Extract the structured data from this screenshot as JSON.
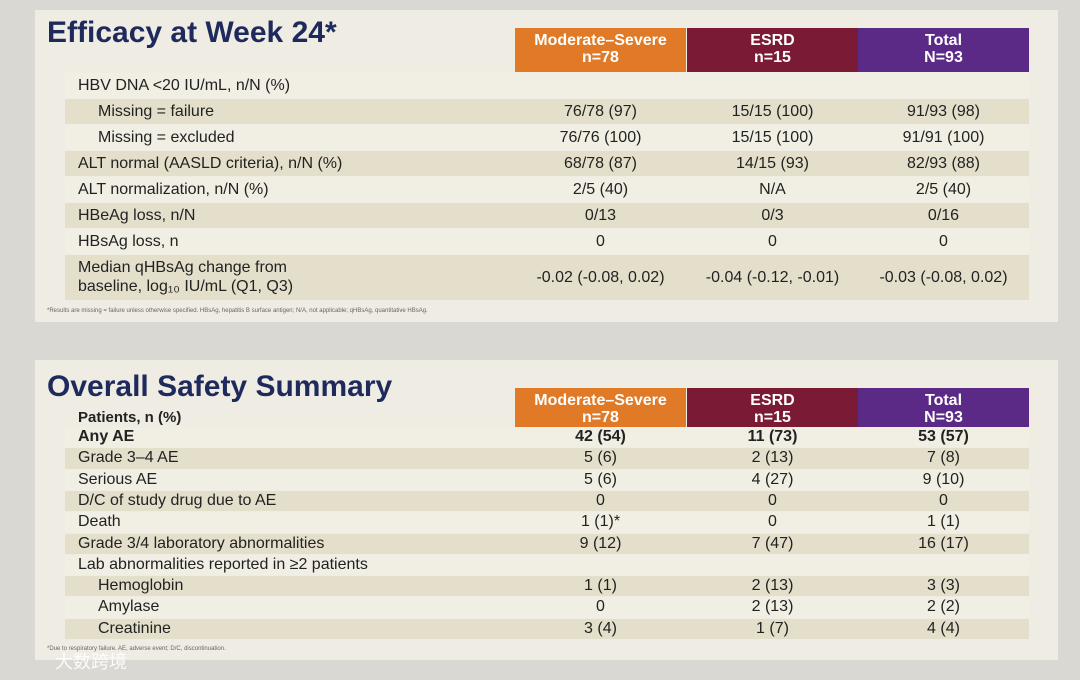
{
  "efficacy": {
    "title": "Efficacy at Week 24*",
    "columns": [
      {
        "name": "Moderate–Severe",
        "n": "n=78"
      },
      {
        "name": "ESRD",
        "n": "n=15"
      },
      {
        "name": "Total",
        "n": "N=93"
      }
    ],
    "rows": [
      {
        "label": "HBV DNA <20 IU/mL, n/N (%)",
        "rows": [
          {
            "label": "Missing = failure",
            "values": [
              "76/78 (97)",
              "15/15 (100)",
              "91/93 (98)"
            ]
          },
          {
            "label": "Missing = excluded",
            "values": [
              "76/76 (100)",
              "15/15 (100)",
              "91/91 (100)"
            ]
          }
        ]
      },
      {
        "label": "ALT normal (AASLD criteria), n/N (%)",
        "values": [
          "68/78 (87)",
          "14/15 (93)",
          "82/93 (88)"
        ]
      },
      {
        "label": "ALT normalization, n/N (%)",
        "values": [
          "2/5 (40)",
          "N/A",
          "2/5 (40)"
        ]
      },
      {
        "label": "HBeAg loss, n/N",
        "values": [
          "0/13",
          "0/3",
          "0/16"
        ]
      },
      {
        "label": "HBsAg loss, n",
        "values": [
          "0",
          "0",
          "0"
        ]
      },
      {
        "label": [
          "Median qHBsAg change from",
          "baseline, log₁₀ IU/mL (Q1, Q3)"
        ],
        "values": [
          "-0.02 (-0.08, 0.02)",
          "-0.04 (-0.12, -0.01)",
          "-0.03 (-0.08, 0.02)"
        ]
      }
    ],
    "footnote": "*Results are missing = failure unless otherwise specified. HBsAg, hepatitis B surface antigen; N/A, not applicable; qHBsAg, quantitative HBsAg."
  },
  "safety": {
    "title": "Overall Safety Summary",
    "lead": "Patients, n (%)",
    "columns": [
      {
        "name": "Moderate–Severe",
        "n": "n=78"
      },
      {
        "name": "ESRD",
        "n": "n=15"
      },
      {
        "name": "Total",
        "n": "N=93"
      }
    ],
    "rows": [
      {
        "label": "Any AE",
        "values": [
          "42 (54)",
          "11 (73)",
          "53 (57)"
        ]
      },
      {
        "label": "Grade 3–4 AE",
        "values": [
          "5 (6)",
          "2 (13)",
          "7 (8)"
        ]
      },
      {
        "label": "Serious AE",
        "values": [
          "5 (6)",
          "4 (27)",
          "9 (10)"
        ]
      },
      {
        "label": "D/C of study drug due to AE",
        "values": [
          "0",
          "0",
          "0"
        ]
      },
      {
        "label": "Death",
        "values": [
          "1 (1)*",
          "0",
          "1 (1)"
        ]
      },
      {
        "label": "Grade 3/4 laboratory abnormalities",
        "values": [
          "9 (12)",
          "7 (47)",
          "16 (17)"
        ]
      },
      {
        "label": "Lab abnormalities reported in ≥2 patients",
        "rows": [
          {
            "label": "Hemoglobin",
            "values": [
              "1 (1)",
              "2 (13)",
              "3 (3)"
            ]
          },
          {
            "label": "Amylase",
            "values": [
              "0",
              "2 (13)",
              "2 (2)"
            ]
          },
          {
            "label": "Creatinine",
            "values": [
              "3 (4)",
              "1 (7)",
              "4 (4)"
            ]
          }
        ]
      }
    ],
    "footnote": "*Due to respiratory failure. AE, adverse event; D/C, discontinuation."
  },
  "watermark": "大数跨境"
}
